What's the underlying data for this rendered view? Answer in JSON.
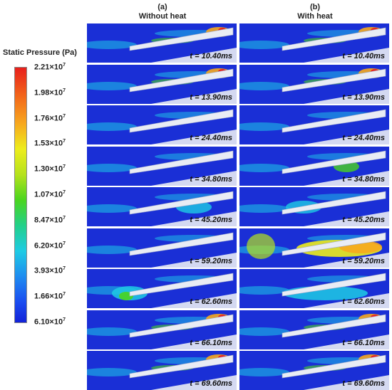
{
  "legend": {
    "title": "Static Pressure (Pa)",
    "ticks": [
      {
        "mantissa": "2.21",
        "exp": "7"
      },
      {
        "mantissa": "1.98",
        "exp": "7"
      },
      {
        "mantissa": "1.76",
        "exp": "7"
      },
      {
        "mantissa": "1.53",
        "exp": "7"
      },
      {
        "mantissa": "1.30",
        "exp": "7"
      },
      {
        "mantissa": "1.07",
        "exp": "7"
      },
      {
        "mantissa": "8.47",
        "exp": "7"
      },
      {
        "mantissa": "6.20",
        "exp": "7"
      },
      {
        "mantissa": "3.93",
        "exp": "7"
      },
      {
        "mantissa": "1.66",
        "exp": "7"
      },
      {
        "mantissa": "6.10",
        "exp": "7"
      }
    ]
  },
  "columns": [
    {
      "letter": "(a)",
      "title": "Without heat"
    },
    {
      "letter": "(b)",
      "title": "With heat"
    }
  ],
  "times": [
    "t = 10.40ms",
    "t = 13.90ms",
    "t = 24.40ms",
    "t = 34.80ms",
    "t = 45.20ms",
    "t = 59.20ms",
    "t = 62.60ms",
    "t = 66.10ms",
    "t = 69.60ms"
  ],
  "colors": {
    "background_flow": "#1a2fd6",
    "wall": "#e9ecf4"
  }
}
